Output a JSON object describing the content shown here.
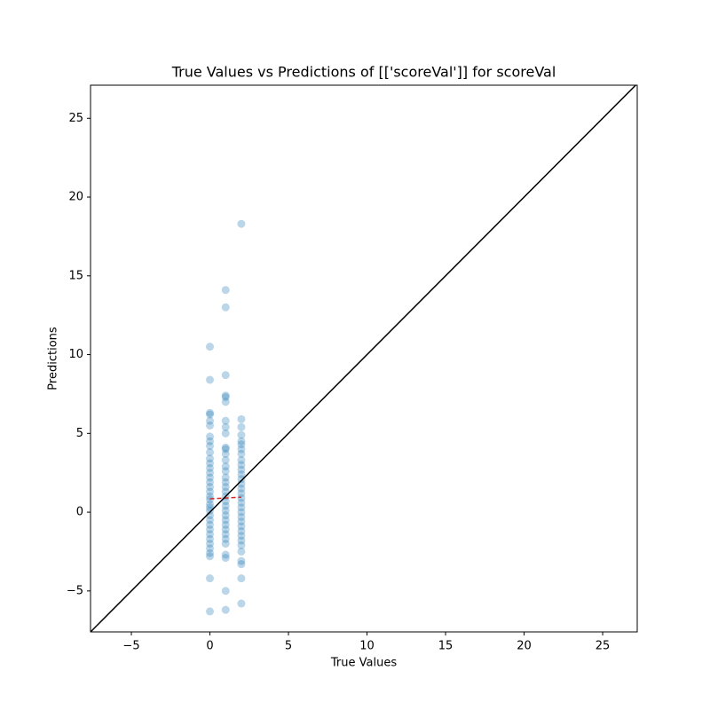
{
  "chart_data": {
    "type": "scatter",
    "title": "True Values vs Predictions of [['scoreVal']] for scoreVal",
    "x_label": "True Values",
    "y_label": "Predictions",
    "xlim": [
      -7.6,
      27.2
    ],
    "ylim": [
      -7.6,
      27.1
    ],
    "xticks": [
      {
        "value": -5,
        "label": "−5"
      },
      0,
      5,
      10,
      15,
      20,
      25
    ],
    "yticks": [
      {
        "value": -5,
        "label": "−5"
      },
      0,
      5,
      10,
      15,
      20,
      25
    ],
    "identity_line": true,
    "identity_color": "#000000",
    "fit": {
      "x": [
        0,
        2
      ],
      "y": [
        0.85,
        0.95
      ],
      "color": "#d62728"
    },
    "series": [
      {
        "color": "#1f77b4",
        "opacity": 0.3,
        "x": [
          0,
          0,
          0,
          0,
          0,
          0,
          0,
          0,
          0,
          0,
          0,
          0,
          0,
          0,
          0,
          0,
          0,
          0,
          0,
          0,
          0,
          0,
          0,
          0,
          0,
          0,
          0,
          0,
          0,
          0,
          0,
          0,
          0,
          0,
          0,
          1,
          1,
          1,
          1,
          1,
          1,
          1,
          1,
          1,
          1,
          1,
          1,
          1,
          1,
          1,
          1,
          1,
          1,
          1,
          1,
          1,
          1,
          1,
          1,
          1,
          1,
          1,
          1,
          1,
          1,
          1,
          1,
          1,
          1,
          2,
          2,
          2,
          2,
          2,
          2,
          2,
          2,
          2,
          2,
          2,
          2,
          2,
          2,
          2,
          2,
          2,
          2,
          2,
          2,
          2,
          2,
          2,
          2,
          2,
          2,
          2,
          2,
          2,
          2,
          2,
          2
        ],
        "values": [
          -6.3,
          -4.2,
          -2.8,
          -2.6,
          -2.3,
          -2.0,
          -1.7,
          -1.4,
          -1.1,
          -0.8,
          -0.5,
          -0.2,
          0.1,
          0.3,
          0.5,
          0.8,
          1.0,
          1.3,
          1.6,
          1.9,
          2.2,
          2.5,
          2.8,
          3.1,
          3.4,
          3.8,
          4.2,
          4.5,
          4.8,
          5.5,
          5.8,
          6.2,
          6.3,
          8.4,
          10.5,
          -6.2,
          -5.0,
          -2.9,
          -2.7,
          -2.0,
          -1.7,
          -1.4,
          -1.1,
          -0.8,
          -0.5,
          -0.2,
          0.1,
          0.4,
          0.7,
          1.0,
          1.3,
          1.6,
          1.9,
          2.2,
          2.6,
          2.9,
          3.3,
          3.7,
          4.0,
          4.1,
          5.0,
          5.4,
          5.8,
          7.0,
          7.3,
          7.4,
          8.7,
          13.0,
          14.1,
          -5.8,
          -4.2,
          -3.3,
          -3.1,
          -2.5,
          -2.1,
          -1.8,
          -1.5,
          -1.2,
          -0.9,
          -0.6,
          -0.3,
          0.0,
          0.3,
          0.6,
          0.9,
          1.2,
          1.5,
          1.8,
          2.1,
          2.4,
          2.7,
          3.0,
          3.3,
          3.7,
          4.0,
          4.3,
          4.5,
          4.9,
          5.4,
          5.9,
          18.3
        ]
      }
    ]
  }
}
